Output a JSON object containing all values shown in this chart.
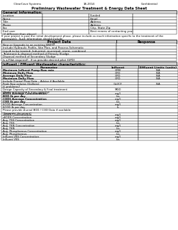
{
  "header_left": "ClearCove Systems",
  "header_center": "18-2014",
  "header_right": "Confidential",
  "title": "Preliminary Wastewater Treatment & Energy Data Sheet",
  "section1_header": "General Information:",
  "general_info_rows": [
    [
      "Location",
      "",
      "Funded",
      ""
    ],
    [
      "Name",
      "",
      "Email",
      ""
    ],
    [
      "Title",
      "",
      "Address",
      ""
    ],
    [
      "Phone",
      "",
      "Address",
      ""
    ],
    [
      "Fax",
      "",
      "City, State Zip",
      ""
    ],
    [
      "End user\n(if different than above)",
      "",
      "Best means of contacting you:",
      ""
    ]
  ],
  "middle_text": "If your project is past the initial development phase, please include as much information specific to the treatment of the\nwastewater.  Such information should include:",
  "section2_col1": "Project Data",
  "section2_col2": "Response",
  "project_data_rows": [
    "New or Upgrade to an existing WWTP",
    "Include Hydraulic Profile, Site Plan, and Process Schematic",
    "Liquid to be treated: Industrial, municipal, storm, combined",
    "Treatment & disposal method of Primary Sludge",
    "Disposal method of Secondary Sludge",
    "Is a Pilot required?   If so provide desired pilot (GPD)"
  ],
  "section3_header": "Influent / Effluent Wastewater characteristics:",
  "ie_col_headers": [
    "Parameter",
    "Influent",
    "Effluent Limits (units)"
  ],
  "ie_rows": [
    [
      "Maximum Influent Pump flow rate",
      "GPM",
      "N/A"
    ],
    [
      "Minimum Daily Flow",
      "GPD",
      "N/A"
    ],
    [
      "Average Daily Flow",
      "GPD",
      "N/A"
    ],
    [
      "Maximum Daily Flow",
      "GPD",
      "N/A"
    ],
    [
      "Include Diurnal Flow Data – Advise if Available",
      "",
      ""
    ],
    [
      "Peak flow volume (Gallons)",
      "Gal/CF",
      "N/A"
    ],
    [
      "I/I problems?",
      "",
      ""
    ],
    [
      "Design Capacity of Secondary & Final treatment\n(State component & max capacity)",
      "MGD",
      ""
    ],
    [
      "BOD5 Average Concentration",
      "mg/l",
      ""
    ],
    [
      "BOD lb per day",
      "lbs",
      ""
    ],
    [
      "COD5 Average Concentration",
      "mg/l",
      ""
    ],
    [
      "COD lb per day",
      "lbs",
      ""
    ],
    [
      "SCOD Average Concentration",
      "mg/l",
      ""
    ],
    [
      "SCOD lb per day",
      "lb",
      ""
    ],
    [
      "Please provide diurnal BOD / COD Data if available\n(Separate document)",
      "",
      ""
    ],
    [
      "cBOD5 Concentration",
      "mg/l",
      ""
    ],
    [
      "sBOD5 Concentration",
      "mg/l",
      ""
    ],
    [
      "Avg. TSS Concentration",
      "mg/l",
      ""
    ],
    [
      "Avg. TSS",
      "lbs",
      ""
    ],
    [
      "Avg. TKN Concentration",
      "mg/l",
      ""
    ],
    [
      "Avg. TKN",
      "lbs",
      ""
    ],
    [
      "Avg. Phosphorous Concentration",
      "mg/l",
      ""
    ],
    [
      "Avg. Phosphorous",
      "lbs",
      ""
    ],
    [
      "Influent VSS Concentration",
      "mg/l",
      ""
    ],
    [
      "Influent VSS",
      "lbs",
      ""
    ]
  ],
  "bold_ie_rows": [
    0,
    1,
    2,
    3,
    8,
    9,
    10,
    11
  ],
  "bg_section_header": "#d3d3d3",
  "bg_white": "#ffffff"
}
